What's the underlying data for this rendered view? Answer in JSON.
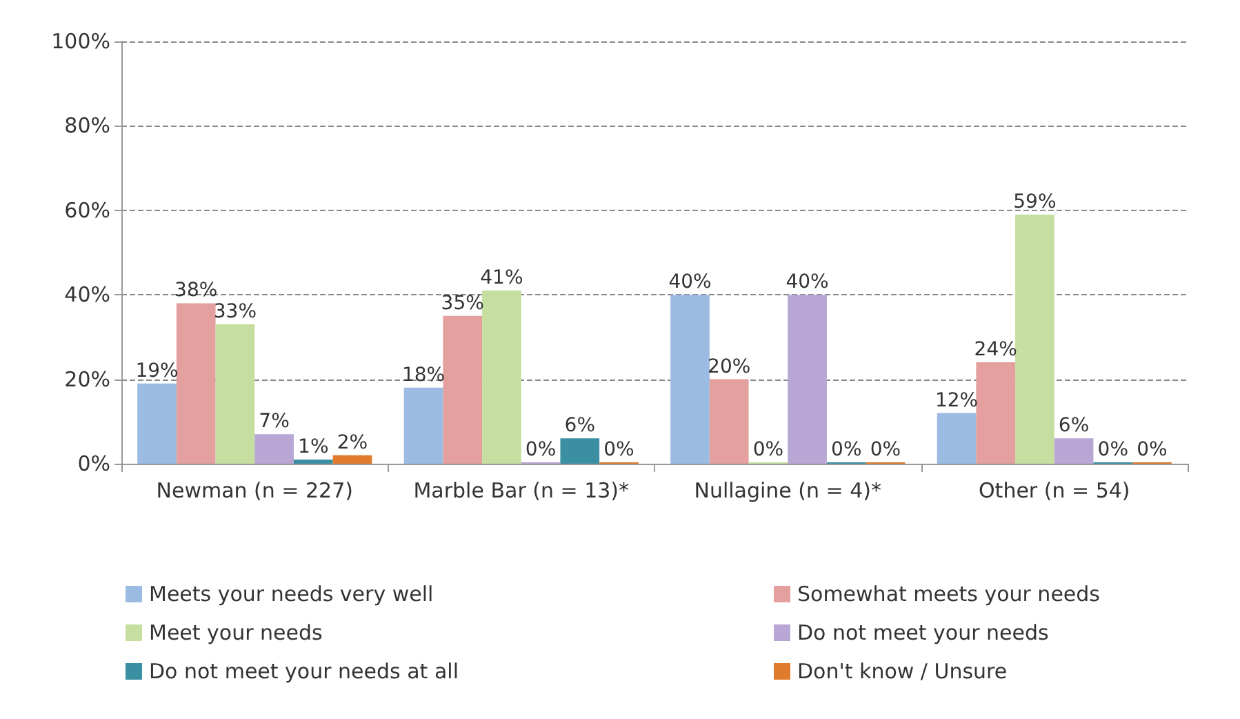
{
  "chart_data": {
    "type": "bar",
    "categories": [
      "Newman (n = 227)",
      "Marble Bar (n = 13)*",
      "Nullagine (n = 4)*",
      "Other (n = 54)"
    ],
    "series": [
      {
        "name": "Meets your needs very well",
        "color": "#9bbbe3",
        "values": [
          19,
          18,
          40,
          12
        ],
        "value_labels": [
          "19%",
          "18%",
          "40%",
          "12%"
        ]
      },
      {
        "name": "Somewhat meets your needs",
        "color": "#e3a09e",
        "values": [
          38,
          35,
          20,
          24
        ],
        "value_labels": [
          "38%",
          "35%",
          "20%",
          "24%"
        ]
      },
      {
        "name": "Meet your needs",
        "color": "#c6dea0",
        "values": [
          33,
          41,
          0,
          59
        ],
        "value_labels": [
          "33%",
          "41%",
          "0%",
          "59%"
        ]
      },
      {
        "name": "Do not meet your needs",
        "color": "#b8a6d4",
        "values": [
          7,
          0,
          40,
          6
        ],
        "value_labels": [
          "7%",
          "0%",
          "40%",
          "6%"
        ]
      },
      {
        "name": "Do not meet your needs at all",
        "color": "#3a8fa3",
        "values": [
          1,
          6,
          0,
          0
        ],
        "value_labels": [
          "1%",
          "6%",
          "0%",
          "0%"
        ]
      },
      {
        "name": "Don't know / Unsure",
        "color": "#e07b2e",
        "values": [
          2,
          0,
          0,
          0
        ],
        "value_labels": [
          "2%",
          "0%",
          "0%",
          "0%"
        ]
      }
    ],
    "ylim": [
      0,
      100
    ],
    "yticks": [
      {
        "value": 0,
        "label": "0%"
      },
      {
        "value": 20,
        "label": "20%"
      },
      {
        "value": 40,
        "label": "40%"
      },
      {
        "value": 60,
        "label": "60%"
      },
      {
        "value": 80,
        "label": "80%"
      },
      {
        "value": 100,
        "label": "100%"
      }
    ],
    "grid": "y",
    "legend": "bottom"
  }
}
